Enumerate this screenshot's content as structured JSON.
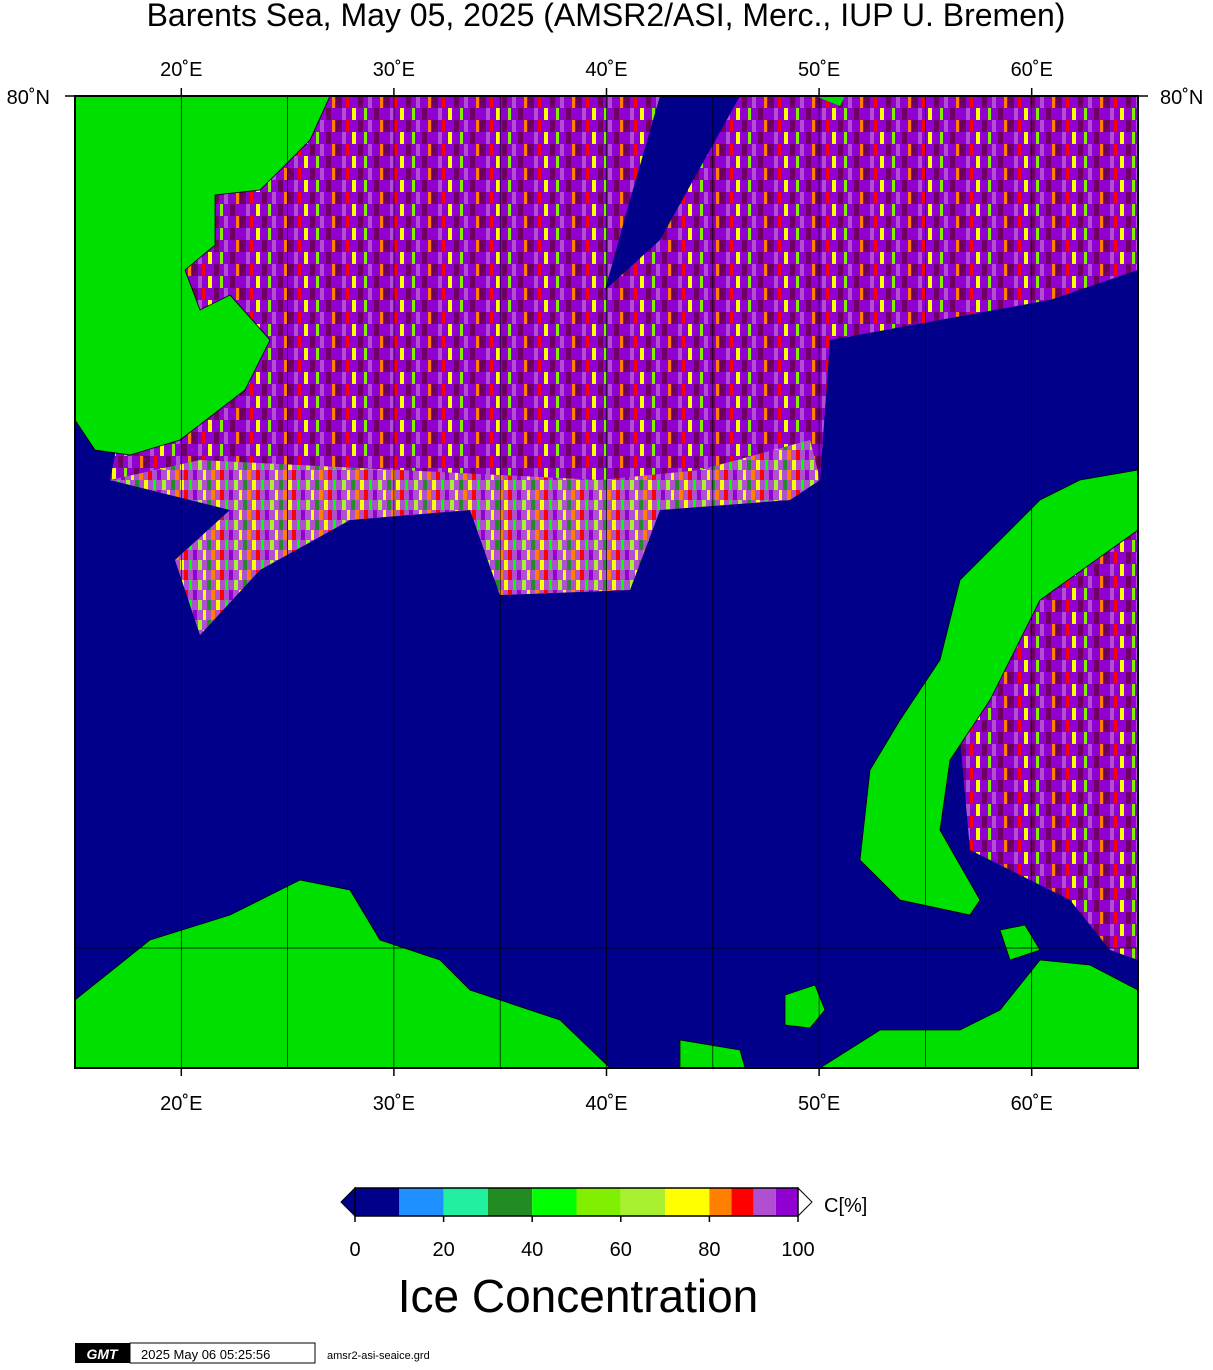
{
  "title": "Barents Sea, May 05, 2025 (AMSR2/ASI, Merc., IUP U. Bremen)",
  "map": {
    "xlim": [
      15,
      65
    ],
    "lon_ticks": [
      {
        "value": 20,
        "label": "20˚E"
      },
      {
        "value": 30,
        "label": "30˚E"
      },
      {
        "value": 40,
        "label": "40˚E"
      },
      {
        "value": 50,
        "label": "50˚E"
      },
      {
        "value": 60,
        "label": "60˚E"
      }
    ],
    "lon_grid": [
      20,
      25,
      30,
      35,
      40,
      45,
      50,
      55,
      60
    ],
    "lat_label": "80˚N"
  },
  "colorbar": {
    "bins": [
      0,
      10,
      20,
      30,
      40,
      50,
      60,
      70,
      80,
      85,
      90,
      95,
      100
    ],
    "colors": [
      "#00008b",
      "#1e90ff",
      "#20f0a0",
      "#228b22",
      "#00ff00",
      "#80f000",
      "#a8f030",
      "#ffff00",
      "#ff8000",
      "#ff0000",
      "#b050d0",
      "#9000d0"
    ],
    "ticks": [
      0,
      20,
      40,
      60,
      80,
      100
    ],
    "unit_label": "C[%]",
    "title": "Ice Concentration"
  },
  "footer": {
    "logo": "GMT",
    "timestamp": "2025 May 06 05:25:56",
    "file": "amsr2-asi-seaice.grd"
  }
}
